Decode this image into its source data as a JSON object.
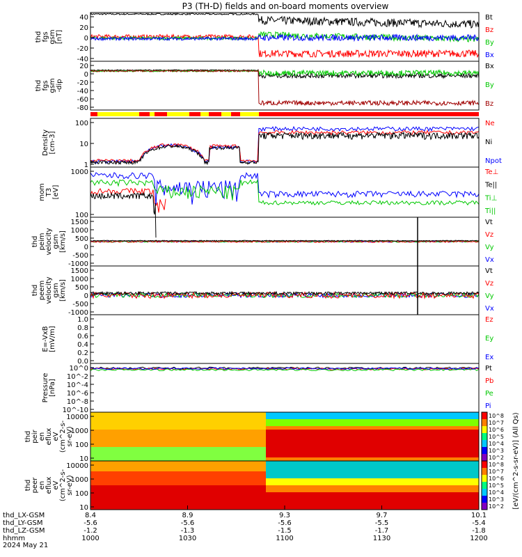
{
  "title": "P3 (TH-D) fields and on-board moments overview",
  "date": "2024 May 21",
  "colorbar_label": "[eV/(cm^2-s-sr-eV)] (All Qs)",
  "colors": {
    "black": "#000000",
    "red": "#ff0000",
    "green": "#00c800",
    "blue": "#0000ff",
    "darkred": "#a00000"
  },
  "chart_data": [
    {
      "type": "line",
      "title": "",
      "ylabel": [
        "thd",
        "fgs",
        "gsm",
        "[nT]"
      ],
      "ylim": [
        -40,
        55
      ],
      "yticks": [
        "40",
        "20",
        "0",
        "-20",
        "-40"
      ],
      "series": [
        {
          "name": "Bt",
          "color": "#000000"
        },
        {
          "name": "Bz",
          "color": "#ff0000"
        },
        {
          "name": "By",
          "color": "#00c800"
        },
        {
          "name": "Bx",
          "color": "#0000ff"
        }
      ]
    },
    {
      "type": "line",
      "ylabel": [
        "thd",
        "fgs",
        "gsm",
        "-dip"
      ],
      "ylim": [
        -100,
        25
      ],
      "yticks": [
        "20",
        "0",
        "-20",
        "-40",
        "-60",
        "-80"
      ],
      "series": [
        {
          "name": "Bx",
          "color": "#000000"
        },
        {
          "name": "By",
          "color": "#00c800"
        },
        {
          "name": "Bz",
          "color": "#a00000"
        }
      ]
    },
    {
      "type": "line",
      "ylabel": [
        "Density",
        "[cm-3]"
      ],
      "yscale": "log",
      "yticks": [
        "100",
        "10",
        "1"
      ],
      "series": [
        {
          "name": "Ne",
          "color": "#ff0000"
        },
        {
          "name": "Ni",
          "color": "#000000"
        },
        {
          "name": "Npot",
          "color": "#0000ff"
        }
      ]
    },
    {
      "type": "line",
      "ylabel": [
        "mom",
        "T3",
        "[eV]"
      ],
      "yscale": "log",
      "yticks": [
        "1000",
        "100"
      ],
      "series": [
        {
          "name": "Te⊥",
          "color": "#ff0000"
        },
        {
          "name": "Te||",
          "color": "#000000"
        },
        {
          "name": "Ti⊥",
          "color": "#00c800"
        },
        {
          "name": "Ti||",
          "color": "#00c800"
        }
      ]
    },
    {
      "type": "line",
      "ylabel": [
        "thd",
        "peim",
        "velocity",
        "gsm",
        "[km/s]"
      ],
      "ylim": [
        -1500,
        1500
      ],
      "yticks": [
        "1500",
        "1000",
        "500",
        "0",
        "-500",
        "-1000"
      ],
      "series": [
        {
          "name": "Vt",
          "color": "#000000"
        },
        {
          "name": "Vz",
          "color": "#ff0000"
        },
        {
          "name": "Vy",
          "color": "#00c800"
        },
        {
          "name": "Vx",
          "color": "#0000ff"
        }
      ]
    },
    {
      "type": "line",
      "ylabel": [
        "thd",
        "peem",
        "velocity",
        "gsm",
        "[km/s]"
      ],
      "ylim": [
        -1000,
        1500
      ],
      "yticks": [
        "1500",
        "1000",
        "500",
        "0",
        "-500",
        "-1000"
      ],
      "series": [
        {
          "name": "Vt",
          "color": "#000000"
        },
        {
          "name": "Vz",
          "color": "#ff0000"
        },
        {
          "name": "Vy",
          "color": "#00c800"
        },
        {
          "name": "Vx",
          "color": "#0000ff"
        }
      ]
    },
    {
      "type": "line",
      "ylabel": [
        "E=-VxB",
        "[mV/m]"
      ],
      "ylim": [
        -0.1,
        1.0
      ],
      "yticks": [
        "1.0",
        "0.8",
        "0.6",
        "0.4",
        "0.2",
        "0.0"
      ],
      "series": [
        {
          "name": "Ez",
          "color": "#ff0000"
        },
        {
          "name": "Ey",
          "color": "#00c800"
        },
        {
          "name": "Ex",
          "color": "#0000ff"
        }
      ]
    },
    {
      "type": "line",
      "ylabel": [
        "Pressure",
        "[nPa]"
      ],
      "yscale": "log",
      "yticks": [
        "10^0",
        "10^-2",
        "10^-4",
        "10^-6",
        "10^-8",
        "10^-10"
      ],
      "series": [
        {
          "name": "Pt",
          "color": "#000000"
        },
        {
          "name": "Pb",
          "color": "#ff0000"
        },
        {
          "name": "Pe",
          "color": "#00c800"
        },
        {
          "name": "Pi",
          "color": "#0000ff"
        }
      ]
    },
    {
      "type": "heatmap",
      "ylabel": [
        "thd",
        "peir",
        "en",
        "eflux",
        "eV",
        "(cm^2-s-",
        "sr-eV)"
      ],
      "yscale": "log",
      "yticks": [
        "10000",
        "1000",
        "100",
        "10"
      ]
    },
    {
      "type": "heatmap",
      "ylabel": [
        "thd",
        "peer",
        "en",
        "eflux",
        "eV",
        "(cm^2-s-",
        "sr-eV)"
      ],
      "yscale": "log",
      "yticks": [
        "10000",
        "1000",
        "100",
        "10"
      ],
      "colorbar_ticks": [
        "10^8",
        "10^7",
        "10^6",
        "10^5",
        "10^4",
        "10^3",
        "10^2"
      ]
    }
  ],
  "x_axis": {
    "row_labels": [
      "thd_LX-GSM",
      "thd_LY-GSM",
      "thd_LZ-GSM",
      "hhmm"
    ],
    "columns": [
      {
        "lx": "8.4",
        "ly": "-5.6",
        "lz": "-1.2",
        "hhmm": "1000"
      },
      {
        "lx": "8.9",
        "ly": "-5.6",
        "lz": "-1.3",
        "hhmm": "1030"
      },
      {
        "lx": "9.3",
        "ly": "-5.6",
        "lz": "-1.5",
        "hhmm": "1100"
      },
      {
        "lx": "9.7",
        "ly": "-5.5",
        "lz": "-1.7",
        "hhmm": "1130"
      },
      {
        "lx": "10.1",
        "ly": "-5.4",
        "lz": "-1.8",
        "hhmm": "1200"
      }
    ]
  }
}
